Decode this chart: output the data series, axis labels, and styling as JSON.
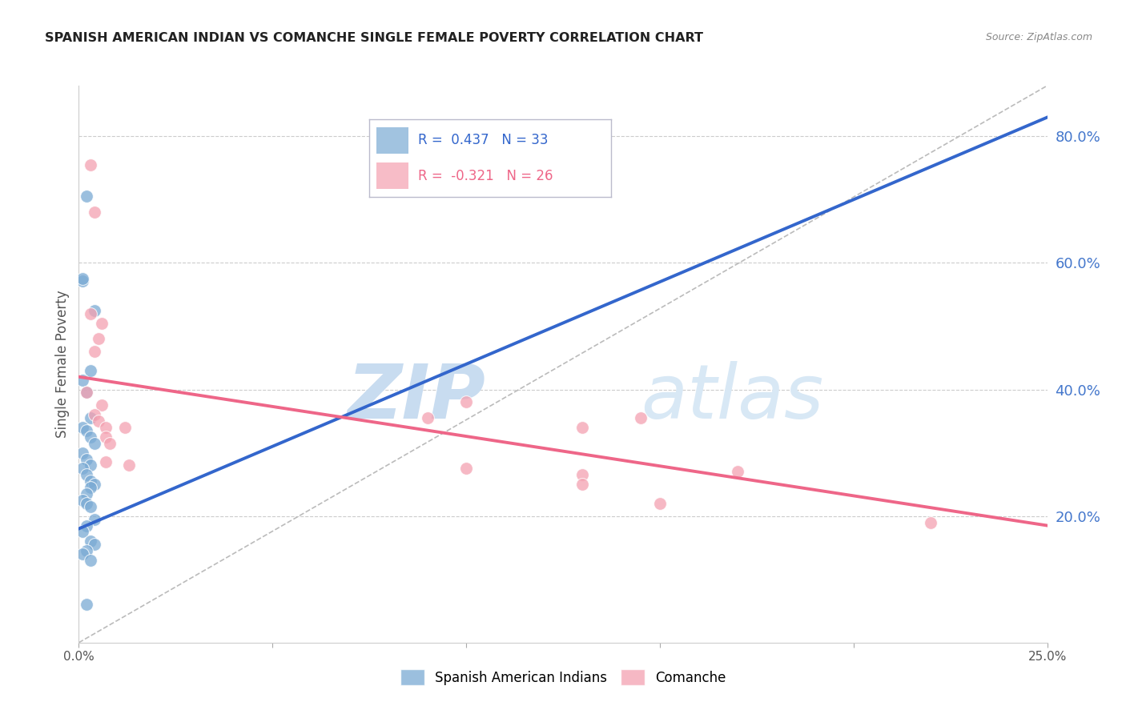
{
  "title": "SPANISH AMERICAN INDIAN VS COMANCHE SINGLE FEMALE POVERTY CORRELATION CHART",
  "source": "Source: ZipAtlas.com",
  "ylabel": "Single Female Poverty",
  "y_ticks": [
    0.2,
    0.4,
    0.6,
    0.8
  ],
  "y_tick_labels": [
    "20.0%",
    "40.0%",
    "60.0%",
    "80.0%"
  ],
  "xlim": [
    0.0,
    0.25
  ],
  "ylim": [
    0.0,
    0.88
  ],
  "blue_label": "Spanish American Indians",
  "pink_label": "Comanche",
  "blue_R": "0.437",
  "blue_N": "33",
  "pink_R": "-0.321",
  "pink_N": "26",
  "blue_color": "#7aaad4",
  "pink_color": "#f4a0b0",
  "blue_line_color": "#3366cc",
  "pink_line_color": "#ee6688",
  "blue_scatter_x": [
    0.001,
    0.002,
    0.004,
    0.001,
    0.003,
    0.001,
    0.002,
    0.003,
    0.001,
    0.002,
    0.003,
    0.004,
    0.001,
    0.002,
    0.003,
    0.001,
    0.002,
    0.003,
    0.004,
    0.003,
    0.002,
    0.001,
    0.002,
    0.003,
    0.004,
    0.002,
    0.001,
    0.003,
    0.004,
    0.002,
    0.001,
    0.003,
    0.002
  ],
  "blue_scatter_y": [
    0.571,
    0.705,
    0.525,
    0.575,
    0.43,
    0.415,
    0.395,
    0.355,
    0.34,
    0.335,
    0.325,
    0.315,
    0.3,
    0.29,
    0.28,
    0.275,
    0.265,
    0.255,
    0.25,
    0.245,
    0.235,
    0.225,
    0.22,
    0.215,
    0.195,
    0.185,
    0.175,
    0.16,
    0.155,
    0.145,
    0.14,
    0.13,
    0.06
  ],
  "pink_scatter_x": [
    0.003,
    0.004,
    0.003,
    0.006,
    0.005,
    0.004,
    0.002,
    0.006,
    0.004,
    0.005,
    0.007,
    0.007,
    0.008,
    0.007,
    0.012,
    0.013,
    0.1,
    0.145,
    0.1,
    0.13,
    0.09,
    0.13,
    0.13,
    0.15,
    0.22,
    0.17
  ],
  "pink_scatter_y": [
    0.755,
    0.68,
    0.52,
    0.505,
    0.48,
    0.46,
    0.395,
    0.375,
    0.36,
    0.35,
    0.34,
    0.325,
    0.315,
    0.285,
    0.34,
    0.28,
    0.38,
    0.355,
    0.275,
    0.265,
    0.355,
    0.34,
    0.25,
    0.22,
    0.19,
    0.27
  ],
  "blue_line_x": [
    0.0,
    0.25
  ],
  "blue_line_y": [
    0.18,
    0.83
  ],
  "pink_line_x": [
    0.0,
    0.25
  ],
  "pink_line_y": [
    0.42,
    0.185
  ],
  "diag_line_x": [
    0.0,
    0.25
  ],
  "diag_line_y": [
    0.0,
    0.88
  ],
  "watermark_zip": "ZIP",
  "watermark_atlas": "atlas",
  "background_color": "#ffffff",
  "grid_color": "#cccccc",
  "title_color": "#222222",
  "source_color": "#888888",
  "ylabel_color": "#555555",
  "right_tick_color": "#4477cc",
  "legend_box_color": "#ddddff"
}
